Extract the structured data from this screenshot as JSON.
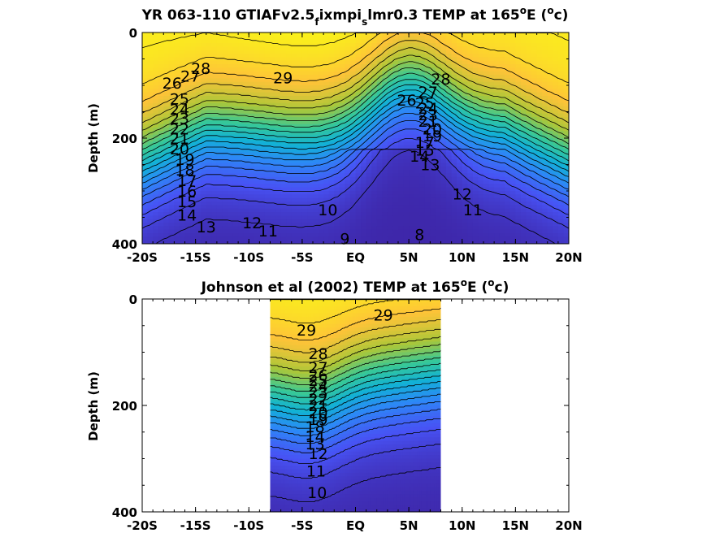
{
  "chart_data": [
    {
      "type": "heatmap",
      "title_main": "YR 063-110 GTIAFv2.5",
      "title_sub1": "f",
      "title_mid": "ixmpi",
      "title_sub2": "s",
      "title_rest": "lmr0.3 TEMP at 165",
      "title_sup": "o",
      "title_end": "E (",
      "title_unit_sup": "o",
      "title_unit_end": "c)",
      "ylabel": "Depth (m)",
      "xlabel": "",
      "xlim": [
        -20,
        20
      ],
      "ylim": [
        0,
        400
      ],
      "x_ticks": [
        -20,
        -15,
        -10,
        -5,
        0,
        5,
        10,
        15,
        20
      ],
      "x_tick_labels": [
        "-20S",
        "-15S",
        "-10S",
        "-5S",
        "EQ",
        "5N",
        "10N",
        "15N",
        "20N"
      ],
      "y_ticks": [
        0,
        200,
        400
      ],
      "y_tick_labels": [
        "0",
        "200",
        "400"
      ],
      "colormap": "parula",
      "color_range": [
        8,
        30
      ],
      "contour_interval": 1,
      "data_extent": [
        -20,
        20
      ],
      "contour_labels": [
        {
          "text": "28",
          "x": -14.5,
          "y": 68
        },
        {
          "text": "27",
          "x": -15.5,
          "y": 82
        },
        {
          "text": "26",
          "x": -17.2,
          "y": 95
        },
        {
          "text": "29",
          "x": -6.8,
          "y": 85
        },
        {
          "text": "25",
          "x": -16.5,
          "y": 125
        },
        {
          "text": "24",
          "x": -16.5,
          "y": 145
        },
        {
          "text": "23",
          "x": -16.5,
          "y": 162
        },
        {
          "text": "22",
          "x": -16.5,
          "y": 182
        },
        {
          "text": "21",
          "x": -16.5,
          "y": 200
        },
        {
          "text": "20",
          "x": -16.5,
          "y": 220
        },
        {
          "text": "19",
          "x": -16.0,
          "y": 240
        },
        {
          "text": "18",
          "x": -16.0,
          "y": 260
        },
        {
          "text": "17",
          "x": -15.8,
          "y": 280
        },
        {
          "text": "16",
          "x": -15.8,
          "y": 300
        },
        {
          "text": "15",
          "x": -15.8,
          "y": 320
        },
        {
          "text": "14",
          "x": -15.8,
          "y": 345
        },
        {
          "text": "13",
          "x": -14.0,
          "y": 368
        },
        {
          "text": "12",
          "x": -9.7,
          "y": 360
        },
        {
          "text": "11",
          "x": -8.2,
          "y": 375
        },
        {
          "text": "10",
          "x": -2.6,
          "y": 335
        },
        {
          "text": "9",
          "x": -1.0,
          "y": 390
        },
        {
          "text": "8",
          "x": 6.0,
          "y": 382
        },
        {
          "text": "28",
          "x": 8.0,
          "y": 88
        },
        {
          "text": "27",
          "x": 6.8,
          "y": 112
        },
        {
          "text": "26",
          "x": 4.8,
          "y": 128
        },
        {
          "text": "25",
          "x": 6.5,
          "y": 133
        },
        {
          "text": "24",
          "x": 6.8,
          "y": 143
        },
        {
          "text": "23",
          "x": 6.8,
          "y": 155
        },
        {
          "text": "21",
          "x": 6.8,
          "y": 168
        },
        {
          "text": "20",
          "x": 7.2,
          "y": 182
        },
        {
          "text": "19",
          "x": 7.2,
          "y": 195
        },
        {
          "text": "17",
          "x": 6.5,
          "y": 208
        },
        {
          "text": "15",
          "x": 6.5,
          "y": 222
        },
        {
          "text": "14",
          "x": 6.0,
          "y": 234
        },
        {
          "text": "13",
          "x": 7.0,
          "y": 250
        },
        {
          "text": "12",
          "x": 10.0,
          "y": 305
        },
        {
          "text": "11",
          "x": 11.0,
          "y": 335
        }
      ]
    },
    {
      "type": "heatmap",
      "title_main": "Johnson et al (2002) TEMP at 165",
      "title_sup": "o",
      "title_end": "E (",
      "title_unit_sup": "o",
      "title_unit_end": "c)",
      "ylabel": "Depth (m)",
      "xlabel": "",
      "xlim": [
        -20,
        20
      ],
      "ylim": [
        0,
        400
      ],
      "x_ticks": [
        -20,
        -15,
        -10,
        -5,
        0,
        5,
        10,
        15,
        20
      ],
      "x_tick_labels": [
        "-20S",
        "-15S",
        "-10S",
        "-5S",
        "EQ",
        "5N",
        "10N",
        "15N",
        "20N"
      ],
      "y_ticks": [
        0,
        200,
        400
      ],
      "y_tick_labels": [
        "0",
        "200",
        "400"
      ],
      "colormap": "parula",
      "color_range": [
        8,
        30
      ],
      "contour_interval": 1,
      "data_extent": [
        -8,
        8
      ],
      "contour_labels": [
        {
          "text": "29",
          "x": -4.6,
          "y": 58
        },
        {
          "text": "29",
          "x": 2.6,
          "y": 30
        },
        {
          "text": "28",
          "x": -3.5,
          "y": 102
        },
        {
          "text": "27",
          "x": -3.5,
          "y": 128
        },
        {
          "text": "26",
          "x": -3.5,
          "y": 143
        },
        {
          "text": "25",
          "x": -3.5,
          "y": 153
        },
        {
          "text": "24",
          "x": -3.5,
          "y": 163
        },
        {
          "text": "23",
          "x": -3.5,
          "y": 175
        },
        {
          "text": "22",
          "x": -3.5,
          "y": 188
        },
        {
          "text": "21",
          "x": -3.5,
          "y": 200
        },
        {
          "text": "20",
          "x": -3.5,
          "y": 213
        },
        {
          "text": "19",
          "x": -3.5,
          "y": 226
        },
        {
          "text": "18",
          "x": -3.8,
          "y": 240
        },
        {
          "text": "14",
          "x": -3.8,
          "y": 258
        },
        {
          "text": "13",
          "x": -3.8,
          "y": 272
        },
        {
          "text": "12",
          "x": -3.5,
          "y": 290
        },
        {
          "text": "11",
          "x": -3.7,
          "y": 323
        },
        {
          "text": "10",
          "x": -3.6,
          "y": 363
        }
      ]
    }
  ]
}
